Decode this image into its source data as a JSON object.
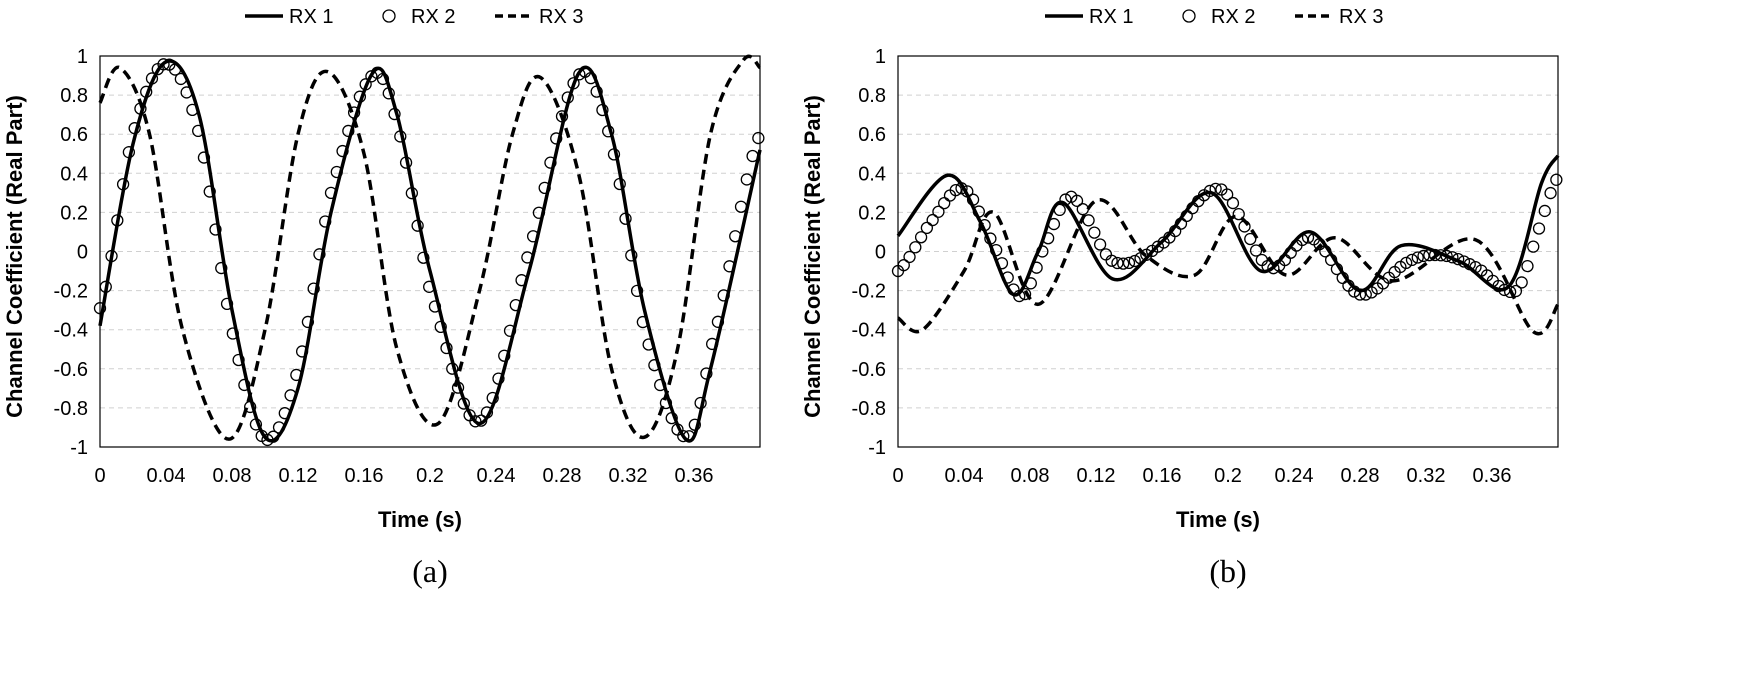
{
  "chart_data": [
    {
      "type": "line",
      "panel_label": "(a)",
      "xlabel": "Time (s)",
      "ylabel": "Channel Coefficient (Real Part)",
      "xlim": [
        0,
        0.4
      ],
      "ylim": [
        -1,
        1
      ],
      "xticks": [
        "0",
        "0.04",
        "0.08",
        "0.12",
        "0.16",
        "0.2",
        "0.24",
        "0.28",
        "0.32",
        "0.36"
      ],
      "yticks": [
        "1",
        "0.8",
        "0.6",
        "0.4",
        "0.2",
        "0",
        "-0.2",
        "-0.4",
        "-0.6",
        "-0.8",
        "-1"
      ],
      "grid": "horizontal dashed",
      "legend": "top-center",
      "series": [
        {
          "name": "RX 1",
          "style": "solid",
          "x": [
            0,
            0.02,
            0.04,
            0.06,
            0.08,
            0.1,
            0.12,
            0.14,
            0.165,
            0.18,
            0.2,
            0.23,
            0.26,
            0.29,
            0.31,
            0.33,
            0.355,
            0.37,
            0.4
          ],
          "y": [
            -0.38,
            0.55,
            0.97,
            0.7,
            -0.3,
            -0.95,
            -0.7,
            0.2,
            0.91,
            0.7,
            -0.1,
            -0.88,
            -0.1,
            0.91,
            0.6,
            -0.3,
            -0.96,
            -0.6,
            0.52
          ]
        },
        {
          "name": "RX 2",
          "style": "circles",
          "x": [
            0,
            0.02,
            0.04,
            0.06,
            0.08,
            0.1,
            0.12,
            0.14,
            0.165,
            0.18,
            0.2,
            0.23,
            0.26,
            0.29,
            0.31,
            0.33,
            0.355,
            0.37,
            0.4
          ],
          "y": [
            -0.29,
            0.6,
            0.96,
            0.6,
            -0.4,
            -0.96,
            -0.6,
            0.3,
            0.9,
            0.65,
            -0.2,
            -0.87,
            0.0,
            0.9,
            0.55,
            -0.4,
            -0.95,
            -0.5,
            0.6
          ]
        },
        {
          "name": "RX 3",
          "style": "dashed",
          "x": [
            0,
            0.012,
            0.03,
            0.05,
            0.078,
            0.1,
            0.12,
            0.138,
            0.16,
            0.18,
            0.205,
            0.23,
            0.25,
            0.267,
            0.29,
            0.31,
            0.33,
            0.35,
            0.37,
            0.39,
            0.4
          ],
          "y": [
            0.76,
            0.94,
            0.6,
            -0.4,
            -0.96,
            -0.4,
            0.6,
            0.92,
            0.5,
            -0.5,
            -0.88,
            -0.2,
            0.6,
            0.89,
            0.4,
            -0.6,
            -0.95,
            -0.5,
            0.6,
            0.98,
            0.94
          ]
        }
      ]
    },
    {
      "type": "line",
      "panel_label": "(b)",
      "xlabel": "Time (s)",
      "ylabel": "Channel Coefficient (Real Part)",
      "xlim": [
        0,
        0.4
      ],
      "ylim": [
        -1,
        1
      ],
      "xticks": [
        "0",
        "0.04",
        "0.08",
        "0.12",
        "0.16",
        "0.2",
        "0.24",
        "0.28",
        "0.32",
        "0.36"
      ],
      "yticks": [
        "1",
        "0.8",
        "0.6",
        "0.4",
        "0.2",
        "0",
        "-0.2",
        "-0.4",
        "-0.6",
        "-0.8",
        "-1"
      ],
      "grid": "horizontal dashed",
      "legend": "top-center",
      "series": [
        {
          "name": "RX 1",
          "style": "solid",
          "x": [
            0,
            0.03,
            0.05,
            0.07,
            0.085,
            0.1,
            0.13,
            0.16,
            0.19,
            0.22,
            0.25,
            0.28,
            0.305,
            0.34,
            0.37,
            0.39,
            0.4
          ],
          "y": [
            0.08,
            0.39,
            0.15,
            -0.22,
            0.0,
            0.25,
            -0.14,
            0.05,
            0.3,
            -0.1,
            0.1,
            -0.2,
            0.03,
            -0.05,
            -0.18,
            0.35,
            0.49
          ]
        },
        {
          "name": "RX 2",
          "style": "circles",
          "x": [
            0,
            0.02,
            0.04,
            0.06,
            0.075,
            0.09,
            0.105,
            0.13,
            0.16,
            0.195,
            0.225,
            0.25,
            0.28,
            0.31,
            0.33,
            0.35,
            0.375,
            0.39,
            0.4
          ],
          "y": [
            -0.1,
            0.15,
            0.32,
            0.0,
            -0.23,
            0.05,
            0.28,
            -0.05,
            0.04,
            0.32,
            -0.08,
            0.07,
            -0.22,
            -0.05,
            -0.02,
            -0.08,
            -0.2,
            0.15,
            0.38
          ]
        },
        {
          "name": "RX 3",
          "style": "dashed",
          "x": [
            0,
            0.015,
            0.04,
            0.058,
            0.085,
            0.12,
            0.15,
            0.18,
            0.205,
            0.235,
            0.265,
            0.3,
            0.35,
            0.385,
            0.4
          ],
          "y": [
            -0.34,
            -0.4,
            -0.1,
            0.2,
            -0.27,
            0.26,
            -0.02,
            -0.12,
            0.18,
            -0.12,
            0.07,
            -0.15,
            0.06,
            -0.41,
            -0.27
          ]
        }
      ]
    }
  ]
}
